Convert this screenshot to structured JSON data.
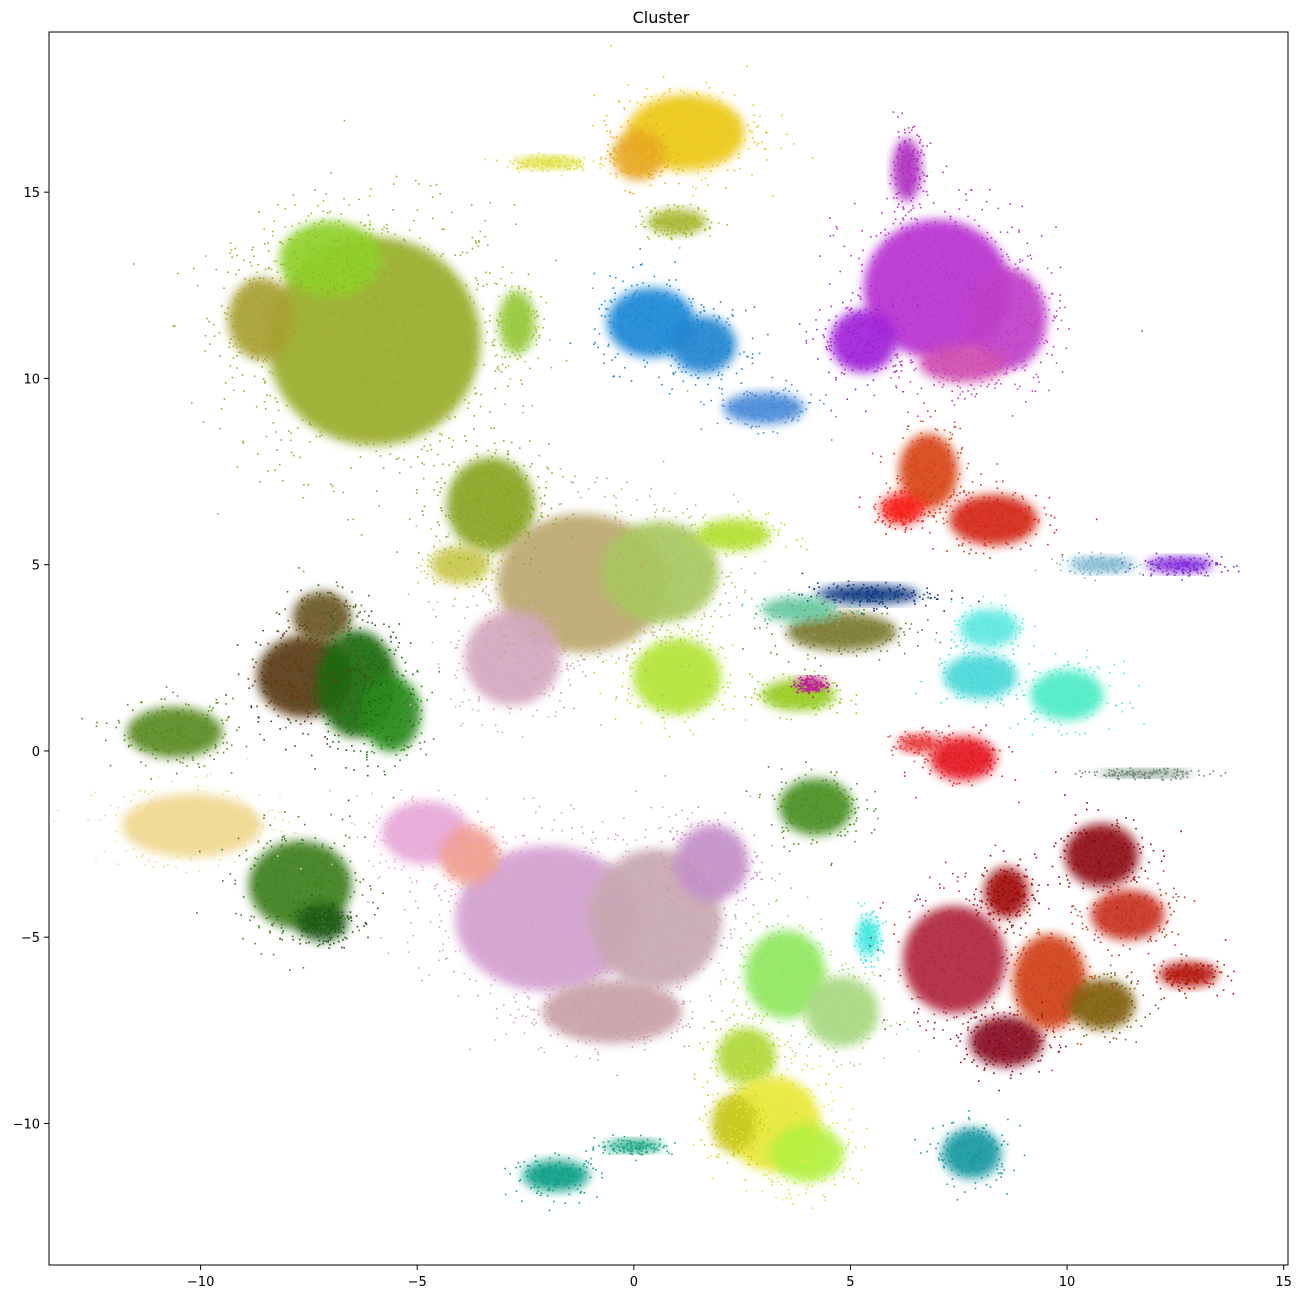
{
  "chart_data": {
    "type": "scatter",
    "title": "Cluster",
    "xlabel": "",
    "ylabel": "",
    "xlim": [
      -13.5,
      15.1
    ],
    "ylim": [
      -13.8,
      19.3
    ],
    "grid": false,
    "legend": "none",
    "xticks": [
      -10,
      -5,
      0,
      5,
      10,
      15
    ],
    "yticks": [
      -10,
      -5,
      0,
      5,
      10,
      15
    ],
    "xtick_labels": [
      "−10",
      "−5",
      "0",
      "5",
      "10",
      "15"
    ],
    "ytick_labels": [
      "−10",
      "−5",
      "0",
      "5",
      "10",
      "15"
    ],
    "clusters": [
      {
        "cx": -6.0,
        "cy": 11.0,
        "rx": 2.9,
        "ry": 3.3,
        "color": "#9aac2a"
      },
      {
        "cx": -7.0,
        "cy": 13.2,
        "rx": 1.4,
        "ry": 1.2,
        "color": "#8fd02a"
      },
      {
        "cx": -8.6,
        "cy": 11.6,
        "rx": 0.9,
        "ry": 1.3,
        "color": "#a8a032"
      },
      {
        "cx": -3.3,
        "cy": 6.6,
        "rx": 1.2,
        "ry": 1.5,
        "color": "#88a420"
      },
      {
        "cx": -2.7,
        "cy": 11.5,
        "rx": 0.5,
        "ry": 1.0,
        "color": "#96c83a"
      },
      {
        "cx": 1.2,
        "cy": 16.6,
        "rx": 1.6,
        "ry": 1.2,
        "color": "#ecc818"
      },
      {
        "cx": 0.1,
        "cy": 16.0,
        "rx": 0.7,
        "ry": 0.8,
        "color": "#e8a822"
      },
      {
        "cx": 1.0,
        "cy": 14.2,
        "rx": 0.8,
        "ry": 0.4,
        "color": "#a8b830"
      },
      {
        "cx": -2.0,
        "cy": 15.8,
        "rx": 0.9,
        "ry": 0.2,
        "color": "#e0e040"
      },
      {
        "cx": 0.4,
        "cy": 11.5,
        "rx": 1.2,
        "ry": 1.1,
        "color": "#1a88d6"
      },
      {
        "cx": 1.6,
        "cy": 10.9,
        "rx": 0.9,
        "ry": 0.9,
        "color": "#2286d0"
      },
      {
        "cx": 3.0,
        "cy": 9.2,
        "rx": 1.1,
        "ry": 0.5,
        "color": "#4a8ad8"
      },
      {
        "cx": 7.0,
        "cy": 12.4,
        "rx": 2.0,
        "ry": 2.2,
        "color": "#b832d0"
      },
      {
        "cx": 8.6,
        "cy": 11.6,
        "rx": 1.1,
        "ry": 1.6,
        "color": "#c040c8"
      },
      {
        "cx": 6.3,
        "cy": 15.6,
        "rx": 0.4,
        "ry": 1.0,
        "color": "#b030c0"
      },
      {
        "cx": 7.6,
        "cy": 10.4,
        "rx": 1.2,
        "ry": 0.6,
        "color": "#d050b0"
      },
      {
        "cx": 5.3,
        "cy": 11.0,
        "rx": 0.9,
        "ry": 1.0,
        "color": "#a020d8"
      },
      {
        "cx": 6.8,
        "cy": 7.5,
        "rx": 0.8,
        "ry": 1.2,
        "color": "#d84418"
      },
      {
        "cx": 8.3,
        "cy": 6.2,
        "rx": 1.2,
        "ry": 0.8,
        "color": "#d42818"
      },
      {
        "cx": 6.2,
        "cy": 6.5,
        "rx": 0.6,
        "ry": 0.5,
        "color": "#f81c18"
      },
      {
        "cx": 10.8,
        "cy": 5.0,
        "rx": 0.9,
        "ry": 0.25,
        "color": "#80b8d0"
      },
      {
        "cx": 12.6,
        "cy": 5.0,
        "rx": 0.9,
        "ry": 0.25,
        "color": "#8028d8"
      },
      {
        "cx": -1.2,
        "cy": 4.5,
        "rx": 2.3,
        "ry": 2.2,
        "color": "#bca870"
      },
      {
        "cx": 0.6,
        "cy": 4.8,
        "rx": 1.6,
        "ry": 1.6,
        "color": "#a8c860"
      },
      {
        "cx": 1.0,
        "cy": 2.0,
        "rx": 1.2,
        "ry": 1.2,
        "color": "#b4e438"
      },
      {
        "cx": 2.3,
        "cy": 5.8,
        "rx": 1.0,
        "ry": 0.5,
        "color": "#b4e030"
      },
      {
        "cx": -2.8,
        "cy": 2.5,
        "rx": 1.3,
        "ry": 1.5,
        "color": "#d4a8c0"
      },
      {
        "cx": 4.8,
        "cy": 3.2,
        "rx": 1.5,
        "ry": 0.6,
        "color": "#7a7a30"
      },
      {
        "cx": 5.4,
        "cy": 4.2,
        "rx": 1.4,
        "ry": 0.3,
        "color": "#0c3880"
      },
      {
        "cx": 3.8,
        "cy": 1.5,
        "rx": 1.0,
        "ry": 0.5,
        "color": "#98cc20"
      },
      {
        "cx": 4.1,
        "cy": 1.8,
        "rx": 0.4,
        "ry": 0.2,
        "color": "#c0189c"
      },
      {
        "cx": 3.8,
        "cy": 3.8,
        "rx": 1.0,
        "ry": 0.4,
        "color": "#68c8a0"
      },
      {
        "cx": 8.2,
        "cy": 3.3,
        "rx": 0.8,
        "ry": 0.6,
        "color": "#5ee8e0"
      },
      {
        "cx": 8.0,
        "cy": 2.0,
        "rx": 1.0,
        "ry": 0.7,
        "color": "#48d8d8"
      },
      {
        "cx": 10.0,
        "cy": 1.5,
        "rx": 1.0,
        "ry": 0.8,
        "color": "#50ecc8"
      },
      {
        "cx": 7.6,
        "cy": -0.2,
        "rx": 0.9,
        "ry": 0.7,
        "color": "#e41820"
      },
      {
        "cx": 6.6,
        "cy": 0.2,
        "rx": 0.6,
        "ry": 0.3,
        "color": "#e84040"
      },
      {
        "cx": 11.8,
        "cy": -0.6,
        "rx": 1.3,
        "ry": 0.12,
        "color": "#708878"
      },
      {
        "cx": -7.6,
        "cy": 2.0,
        "rx": 1.3,
        "ry": 1.3,
        "color": "#5a3a12"
      },
      {
        "cx": -7.2,
        "cy": 3.6,
        "rx": 0.8,
        "ry": 0.8,
        "color": "#6a5828"
      },
      {
        "cx": -6.4,
        "cy": 1.8,
        "rx": 1.1,
        "ry": 1.7,
        "color": "#1a6a10"
      },
      {
        "cx": -5.6,
        "cy": 1.0,
        "rx": 0.8,
        "ry": 1.2,
        "color": "#2a8a1a"
      },
      {
        "cx": -10.6,
        "cy": 0.5,
        "rx": 1.3,
        "ry": 0.8,
        "color": "#5a8a20"
      },
      {
        "cx": -10.2,
        "cy": -2.0,
        "rx": 1.9,
        "ry": 1.0,
        "color": "#f0d890"
      },
      {
        "cx": -7.7,
        "cy": -3.6,
        "rx": 1.4,
        "ry": 1.4,
        "color": "#3e7e1e"
      },
      {
        "cx": -7.2,
        "cy": -4.6,
        "rx": 0.7,
        "ry": 0.6,
        "color": "#1e5a12"
      },
      {
        "cx": -4.0,
        "cy": 5.0,
        "rx": 0.8,
        "ry": 0.6,
        "color": "#c8c850"
      },
      {
        "cx": -2.0,
        "cy": -4.5,
        "rx": 2.5,
        "ry": 2.3,
        "color": "#d4a0d0"
      },
      {
        "cx": 0.5,
        "cy": -4.5,
        "rx": 1.8,
        "ry": 2.2,
        "color": "#c8a8b0"
      },
      {
        "cx": -4.8,
        "cy": -2.2,
        "rx": 1.2,
        "ry": 1.0,
        "color": "#e8a8d8"
      },
      {
        "cx": -3.8,
        "cy": -2.8,
        "rx": 0.8,
        "ry": 0.9,
        "color": "#f0a090"
      },
      {
        "cx": 1.8,
        "cy": -3.0,
        "rx": 1.0,
        "ry": 1.2,
        "color": "#c490c8"
      },
      {
        "cx": -0.5,
        "cy": -7.0,
        "rx": 1.9,
        "ry": 1.0,
        "color": "#c8a0a8"
      },
      {
        "cx": 4.2,
        "cy": -1.5,
        "rx": 1.0,
        "ry": 0.9,
        "color": "#4a9020"
      },
      {
        "cx": 3.5,
        "cy": -6.0,
        "rx": 1.1,
        "ry": 1.4,
        "color": "#90e860"
      },
      {
        "cx": 4.8,
        "cy": -7.0,
        "rx": 1.0,
        "ry": 1.1,
        "color": "#a8d880"
      },
      {
        "cx": 2.6,
        "cy": -8.2,
        "rx": 0.8,
        "ry": 0.9,
        "color": "#b0d838"
      },
      {
        "cx": 3.2,
        "cy": -10.0,
        "rx": 1.3,
        "ry": 1.5,
        "color": "#e8e838"
      },
      {
        "cx": 4.0,
        "cy": -10.8,
        "rx": 1.0,
        "ry": 0.9,
        "color": "#b4f040"
      },
      {
        "cx": 2.3,
        "cy": -10.0,
        "rx": 0.6,
        "ry": 0.9,
        "color": "#c8c820"
      },
      {
        "cx": 5.4,
        "cy": -5.0,
        "rx": 0.3,
        "ry": 0.6,
        "color": "#40e8e0"
      },
      {
        "cx": -1.8,
        "cy": -11.4,
        "rx": 0.9,
        "ry": 0.5,
        "color": "#10a088"
      },
      {
        "cx": 0.0,
        "cy": -10.6,
        "rx": 0.8,
        "ry": 0.2,
        "color": "#20a888"
      },
      {
        "cx": 7.8,
        "cy": -10.8,
        "rx": 0.8,
        "ry": 0.8,
        "color": "#1898a0"
      },
      {
        "cx": 7.4,
        "cy": -5.6,
        "rx": 1.4,
        "ry": 1.7,
        "color": "#b0283c"
      },
      {
        "cx": 8.6,
        "cy": -7.8,
        "rx": 1.0,
        "ry": 0.8,
        "color": "#880820"
      },
      {
        "cx": 9.6,
        "cy": -6.2,
        "rx": 1.0,
        "ry": 1.5,
        "color": "#d04018"
      },
      {
        "cx": 10.8,
        "cy": -2.8,
        "rx": 1.0,
        "ry": 1.0,
        "color": "#900c12"
      },
      {
        "cx": 11.4,
        "cy": -4.4,
        "rx": 1.0,
        "ry": 0.8,
        "color": "#c83020"
      },
      {
        "cx": 12.8,
        "cy": -6.0,
        "rx": 0.8,
        "ry": 0.4,
        "color": "#b41808"
      },
      {
        "cx": 10.8,
        "cy": -6.8,
        "rx": 0.9,
        "ry": 0.8,
        "color": "#806010"
      },
      {
        "cx": 8.6,
        "cy": -3.8,
        "rx": 0.6,
        "ry": 0.8,
        "color": "#a00808"
      }
    ]
  }
}
